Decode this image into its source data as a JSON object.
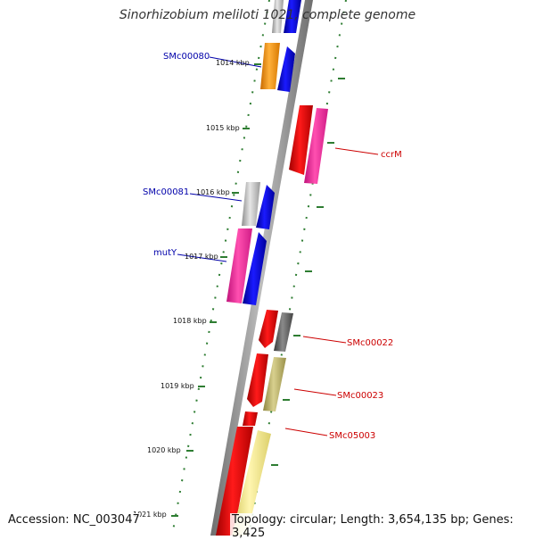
{
  "title": "Sinorhizobium meliloti 1021, complete genome",
  "footer": {
    "accession": "Accession: NC_003047",
    "summary": "Topology: circular; Length: 3,654,135 bp; Genes: 3,425"
  },
  "scale_labels": [
    "1014 kbp",
    "1015 kbp",
    "1016 kbp",
    "1017 kbp",
    "1018 kbp",
    "1019 kbp",
    "1020 kbp",
    "1021 kbp"
  ],
  "gene_labels": {
    "left": [
      "SMc00080",
      "SMc00081",
      "mutY"
    ],
    "right": [
      "ccrM",
      "SMc00022",
      "SMc00023",
      "SMc05003"
    ]
  },
  "colors": {
    "left_label": "#0000aa",
    "right_label": "#cc0000",
    "tick": "#2e7d32",
    "backbone": "#8c8c8c"
  }
}
